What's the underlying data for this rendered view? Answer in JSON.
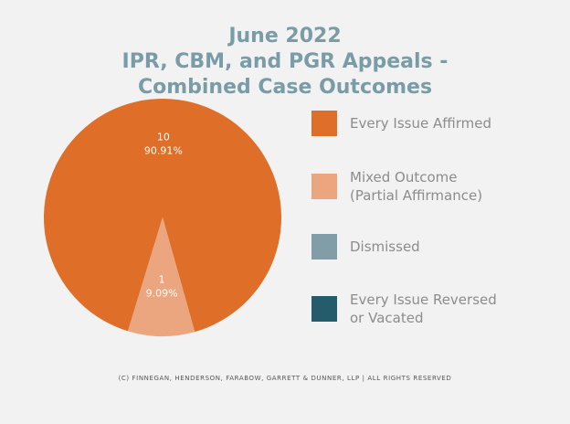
{
  "chart_data": {
    "type": "pie",
    "title_lines": [
      "June 2022",
      "IPR, CBM, and PGR Appeals -",
      "Combined Case Outcomes"
    ],
    "slices": [
      {
        "name": "Every Issue Affirmed",
        "value": 10,
        "percent_label": "90.91%",
        "count_label": "10",
        "color": "#df6f28"
      },
      {
        "name": "Mixed Outcome (Partial Affirmance)",
        "value": 1,
        "percent_label": "9.09%",
        "count_label": "1",
        "color": "#eba67f"
      },
      {
        "name": "Dismissed",
        "value": 0,
        "color": "#819ea8"
      },
      {
        "name": "Every Issue Reversed or Vacated",
        "value": 0,
        "color": "#245c6b"
      }
    ],
    "legend": {
      "placement": "right",
      "items": [
        {
          "lines": [
            "Every Issue Affirmed"
          ],
          "color": "#df6f28"
        },
        {
          "lines": [
            "Mixed Outcome",
            "(Partial Affirmance)"
          ],
          "color": "#eba67f"
        },
        {
          "lines": [
            "Dismissed"
          ],
          "color": "#819ea8"
        },
        {
          "lines": [
            "Every Issue Reversed",
            "or Vacated"
          ],
          "color": "#245c6b"
        }
      ]
    }
  },
  "footer": "(c) Finnegan, Henderson, Farabow, Garrett & Dunner, LLP | All Rights Reserved"
}
